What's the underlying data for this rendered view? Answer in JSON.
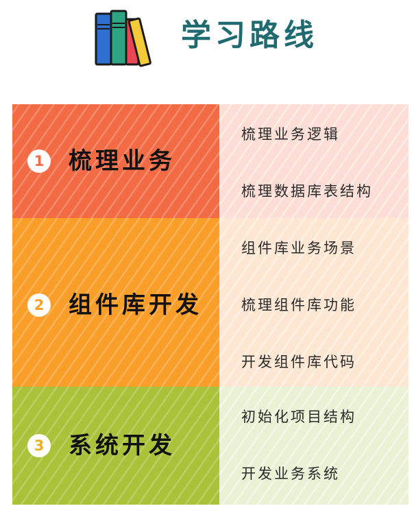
{
  "header": {
    "title": "学习路线",
    "icon": "books-icon"
  },
  "colors": {
    "title": "#1f6b6f",
    "section1_dark": "#f26b45",
    "section1_light": "#fcded6",
    "section2_dark": "#fa9e2a",
    "section2_light": "#fde7d2",
    "section3_dark": "#a9c23a",
    "section3_light": "#eaf2d6"
  },
  "sections": [
    {
      "number": "1",
      "title": "梳理业务",
      "items": [
        "梳理业务逻辑",
        "梳理数据库表结构"
      ]
    },
    {
      "number": "2",
      "title": "组件库开发",
      "items": [
        "组件库业务场景",
        "梳理组件库功能",
        "开发组件库代码"
      ]
    },
    {
      "number": "3",
      "title": "系统开发",
      "items": [
        "初始化项目结构",
        "开发业务系统"
      ]
    }
  ]
}
